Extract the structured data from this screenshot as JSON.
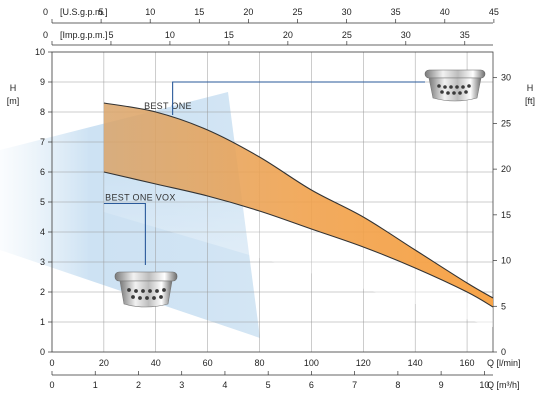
{
  "chart_data": {
    "type": "area",
    "x_axis": {
      "label": "Q [l/min]",
      "min": 0,
      "max": 170,
      "ticks": [
        0,
        20,
        40,
        60,
        80,
        100,
        120,
        140,
        160
      ]
    },
    "x_axis_m3h": {
      "label": "Q [m³/h]",
      "ticks": [
        0,
        1,
        2,
        3,
        4,
        5,
        6,
        7,
        8,
        9,
        10
      ]
    },
    "x_axis_usgpm": {
      "label": "[U.S.g.p.m.]",
      "ticks": [
        0,
        5,
        10,
        15,
        20,
        25,
        30,
        35,
        40,
        45
      ]
    },
    "x_axis_impgpm": {
      "label": "[Imp.g.p.m.]",
      "ticks": [
        0,
        5,
        10,
        15,
        20,
        25,
        30,
        35
      ]
    },
    "y_axis": {
      "label": "H",
      "unit": "[m]",
      "min": 0,
      "max": 10,
      "ticks": [
        0,
        1,
        2,
        3,
        4,
        5,
        6,
        7,
        8,
        9,
        10
      ]
    },
    "y_axis_ft": {
      "label": "H",
      "unit": "[ft]",
      "ticks": [
        0,
        5,
        10,
        15,
        20,
        25,
        30
      ]
    },
    "grid": true,
    "series": [
      {
        "name": "BEST ONE",
        "x": [
          20,
          40,
          60,
          80,
          100,
          120,
          140,
          160,
          170
        ],
        "y": [
          8.3,
          8.0,
          7.4,
          6.5,
          5.4,
          4.5,
          3.4,
          2.3,
          1.8
        ]
      },
      {
        "name": "BEST ONE VOX",
        "x": [
          20,
          40,
          60,
          80,
          100,
          120,
          140,
          160,
          170
        ],
        "y": [
          6.0,
          5.6,
          5.2,
          4.7,
          4.1,
          3.5,
          2.8,
          2.0,
          1.5
        ]
      }
    ]
  }
}
